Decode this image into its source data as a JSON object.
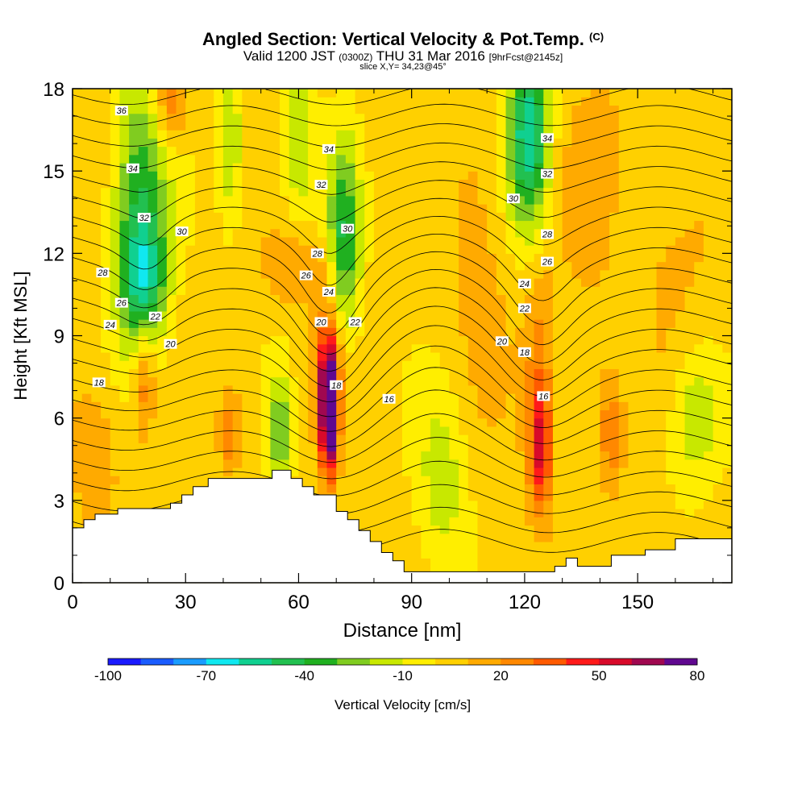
{
  "title": {
    "main": "Angled Section: Vertical Velocity & Pot.Temp.",
    "main_unit": "(C)",
    "valid_prefix": "Valid 1200 JST",
    "valid_zone": "(0300Z)",
    "valid_date": "THU 31 Mar 2016",
    "forecast": "[9hrFcst@2145z]",
    "slice": "slice X,Y= 34,23@45°"
  },
  "chart_data": {
    "type": "heatmap",
    "xlabel": "Distance [nm]",
    "ylabel": "Height [Kft MSL]",
    "xlim": [
      0,
      175
    ],
    "ylim": [
      0,
      18
    ],
    "x_ticks": [
      0,
      30,
      60,
      90,
      120,
      150
    ],
    "y_ticks": [
      0,
      3,
      6,
      9,
      12,
      15,
      18
    ],
    "colorbar": {
      "label": "Vertical Velocity [cm/s]",
      "tick_labels": [
        "-100",
        "-70",
        "-40",
        "-10",
        "20",
        "50",
        "80"
      ],
      "levels": [
        -100,
        -90,
        -80,
        -70,
        -60,
        -50,
        -40,
        -30,
        -20,
        -10,
        0,
        10,
        20,
        30,
        40,
        50,
        60,
        70,
        80
      ],
      "colors": [
        "#1a1aff",
        "#1a5cff",
        "#1a9cff",
        "#10e8f0",
        "#10d090",
        "#22c050",
        "#20b020",
        "#80cc20",
        "#c8e800",
        "#ffee00",
        "#ffd000",
        "#ffaa00",
        "#ff8800",
        "#ff5a00",
        "#ff1a1a",
        "#d80a2a",
        "#a00850",
        "#600890"
      ]
    },
    "background_velocity": 4,
    "velocity_cells": [
      {
        "x": 18,
        "y": 13.5,
        "sx": 5,
        "sy": 3.5,
        "v": -45
      },
      {
        "x": 19,
        "y": 11.0,
        "sx": 4,
        "sy": 1.5,
        "v": -35
      },
      {
        "x": 42,
        "y": 16.0,
        "sx": 2,
        "sy": 2,
        "v": -25
      },
      {
        "x": 60,
        "y": 16.5,
        "sx": 3,
        "sy": 2.5,
        "v": -25
      },
      {
        "x": 72,
        "y": 12.5,
        "sx": 3,
        "sy": 2.5,
        "v": -45
      },
      {
        "x": 121,
        "y": 17.0,
        "sx": 4,
        "sy": 2,
        "v": -50
      },
      {
        "x": 121,
        "y": 14.5,
        "sx": 4,
        "sy": 2,
        "v": -25
      },
      {
        "x": 55,
        "y": 5.5,
        "sx": 2,
        "sy": 1.5,
        "v": -35
      },
      {
        "x": 98,
        "y": 3.5,
        "sx": 5,
        "sy": 2.5,
        "v": -20
      },
      {
        "x": 165,
        "y": 6.0,
        "sx": 5,
        "sy": 2,
        "v": -20
      },
      {
        "x": 147,
        "y": 9.5,
        "sx": 4,
        "sy": 3,
        "v": -10
      },
      {
        "x": 68,
        "y": 6.3,
        "sx": 1.4,
        "sy": 1.6,
        "v": 85
      },
      {
        "x": 68,
        "y": 7.5,
        "sx": 2.5,
        "sy": 2.0,
        "v": 35
      },
      {
        "x": 124,
        "y": 4.8,
        "sx": 2,
        "sy": 1.5,
        "v": 40
      },
      {
        "x": 124,
        "y": 7.5,
        "sx": 3,
        "sy": 3,
        "v": 20
      },
      {
        "x": 19,
        "y": 7.5,
        "sx": 2,
        "sy": 1.5,
        "v": 28
      },
      {
        "x": 42,
        "y": 5.5,
        "sx": 2,
        "sy": 1,
        "v": 25
      },
      {
        "x": 143,
        "y": 5.5,
        "sx": 2.5,
        "sy": 1.5,
        "v": 25
      },
      {
        "x": 26,
        "y": 17.5,
        "sx": 3,
        "sy": 1,
        "v": 25
      },
      {
        "x": 6,
        "y": 5.0,
        "sx": 5,
        "sy": 2,
        "v": 14
      },
      {
        "x": 60,
        "y": 11.5,
        "sx": 6,
        "sy": 1,
        "v": 18
      },
      {
        "x": 108,
        "y": 12.5,
        "sx": 6,
        "sy": 5,
        "v": 10
      },
      {
        "x": 140,
        "y": 14.0,
        "sx": 8,
        "sy": 4,
        "v": 10
      },
      {
        "x": 160,
        "y": 11.0,
        "sx": 8,
        "sy": 3,
        "v": 8
      }
    ],
    "isentrope_labels": [
      {
        "text": "36",
        "x": 13,
        "y": 17.2
      },
      {
        "text": "34",
        "x": 16,
        "y": 15.1
      },
      {
        "text": "32",
        "x": 19,
        "y": 13.3
      },
      {
        "text": "30",
        "x": 29,
        "y": 12.8
      },
      {
        "text": "28",
        "x": 8,
        "y": 11.3
      },
      {
        "text": "26",
        "x": 13,
        "y": 10.2
      },
      {
        "text": "24",
        "x": 10,
        "y": 9.4
      },
      {
        "text": "22",
        "x": 22,
        "y": 9.7
      },
      {
        "text": "20",
        "x": 26,
        "y": 8.7
      },
      {
        "text": "18",
        "x": 7,
        "y": 7.3
      },
      {
        "text": "34",
        "x": 68,
        "y": 15.8
      },
      {
        "text": "32",
        "x": 66,
        "y": 14.5
      },
      {
        "text": "30",
        "x": 73,
        "y": 12.9
      },
      {
        "text": "28",
        "x": 65,
        "y": 12.0
      },
      {
        "text": "26",
        "x": 62,
        "y": 11.2
      },
      {
        "text": "24",
        "x": 68,
        "y": 10.6
      },
      {
        "text": "20",
        "x": 66,
        "y": 9.5
      },
      {
        "text": "22",
        "x": 75,
        "y": 9.5
      },
      {
        "text": "18",
        "x": 70,
        "y": 7.2
      },
      {
        "text": "16",
        "x": 84,
        "y": 6.7
      },
      {
        "text": "34",
        "x": 126,
        "y": 16.2
      },
      {
        "text": "32",
        "x": 126,
        "y": 14.9
      },
      {
        "text": "30",
        "x": 117,
        "y": 14.0
      },
      {
        "text": "28",
        "x": 126,
        "y": 12.7
      },
      {
        "text": "26",
        "x": 126,
        "y": 11.7
      },
      {
        "text": "24",
        "x": 120,
        "y": 10.9
      },
      {
        "text": "22",
        "x": 120,
        "y": 10.0
      },
      {
        "text": "20",
        "x": 114,
        "y": 8.8
      },
      {
        "text": "18",
        "x": 120,
        "y": 8.4
      },
      {
        "text": "16",
        "x": 125,
        "y": 6.8
      }
    ],
    "terrain": [
      [
        0,
        2.0
      ],
      [
        3,
        2.0
      ],
      [
        3,
        2.3
      ],
      [
        6,
        2.3
      ],
      [
        6,
        2.5
      ],
      [
        12,
        2.5
      ],
      [
        12,
        2.7
      ],
      [
        26,
        2.7
      ],
      [
        26,
        2.9
      ],
      [
        29,
        2.9
      ],
      [
        29,
        3.2
      ],
      [
        32,
        3.2
      ],
      [
        32,
        3.5
      ],
      [
        36,
        3.5
      ],
      [
        36,
        3.8
      ],
      [
        53,
        3.8
      ],
      [
        53,
        4.1
      ],
      [
        58,
        4.1
      ],
      [
        58,
        3.8
      ],
      [
        61,
        3.8
      ],
      [
        61,
        3.5
      ],
      [
        64,
        3.5
      ],
      [
        64,
        3.2
      ],
      [
        70,
        3.2
      ],
      [
        70,
        2.6
      ],
      [
        73,
        2.6
      ],
      [
        73,
        2.3
      ],
      [
        76,
        2.3
      ],
      [
        76,
        1.9
      ],
      [
        79,
        1.9
      ],
      [
        79,
        1.5
      ],
      [
        82,
        1.5
      ],
      [
        82,
        1.1
      ],
      [
        85,
        1.1
      ],
      [
        85,
        0.8
      ],
      [
        88,
        0.8
      ],
      [
        88,
        0.4
      ],
      [
        128,
        0.4
      ],
      [
        128,
        0.6
      ],
      [
        131,
        0.6
      ],
      [
        131,
        0.9
      ],
      [
        134,
        0.9
      ],
      [
        134,
        0.6
      ],
      [
        143,
        0.6
      ],
      [
        143,
        1.0
      ],
      [
        152,
        1.0
      ],
      [
        152,
        1.2
      ],
      [
        160,
        1.2
      ],
      [
        160,
        1.6
      ],
      [
        175,
        1.6
      ]
    ]
  }
}
